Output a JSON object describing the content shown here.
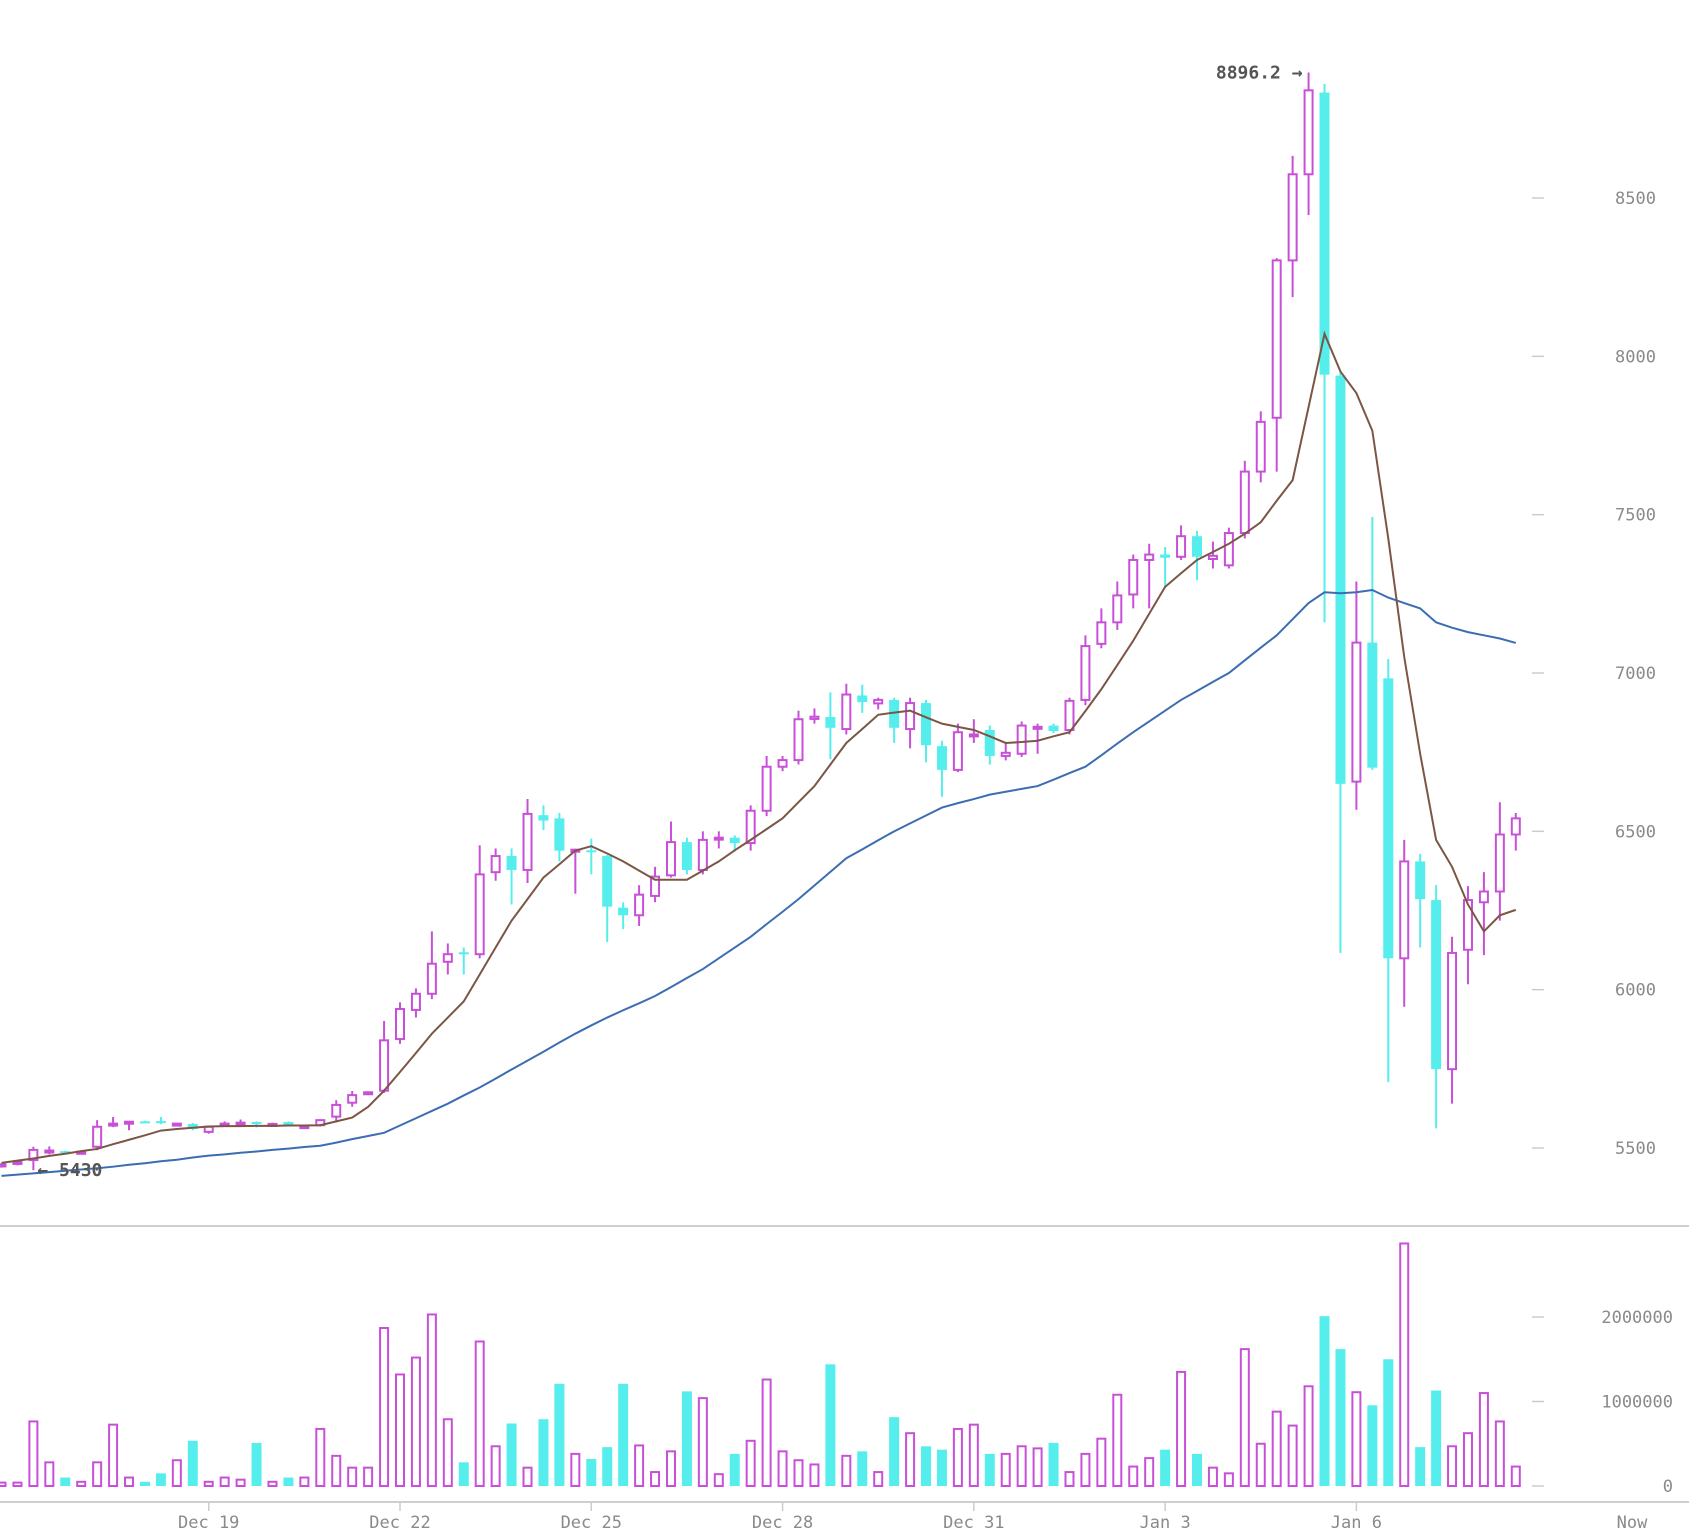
{
  "chart_data": {
    "type": "candlestick",
    "colors": {
      "up": "#c850d8",
      "down": "#55eeec",
      "ma_short": "#7b5644",
      "ma_long": "#3c6db3",
      "axis_text": "#8a8a8a",
      "divider": "#cfcfcf"
    },
    "grid": false,
    "price_axis": {
      "ylim": [
        5250,
        8980
      ],
      "ticks": [
        5500,
        6000,
        6500,
        7000,
        7500,
        8000,
        8500
      ],
      "tick_labels": [
        "5500",
        "6000",
        "6500",
        "7000",
        "7500",
        "8000",
        "8500"
      ]
    },
    "volume_axis": {
      "ylim": [
        0,
        2900000
      ],
      "ticks": [
        0,
        1000000,
        2000000
      ],
      "tick_labels": [
        "0",
        "1000000",
        "2000000"
      ]
    },
    "x_ticks": [
      "Dec 19",
      "Dec 22",
      "Dec 25",
      "Dec 28",
      "Dec 31",
      "Jan 3",
      "Jan 6"
    ],
    "x_now_label": "Now",
    "annotations": {
      "high_label": "8896.2 →",
      "low_label": "← 5430"
    },
    "x": [
      "Dec 15 18:00",
      "Dec 16 00:00",
      "Dec 16 06:00",
      "Dec 16 12:00",
      "Dec 16 18:00",
      "Dec 17 00:00",
      "Dec 17 06:00",
      "Dec 17 12:00",
      "Dec 17 18:00",
      "Dec 18 00:00",
      "Dec 18 06:00",
      "Dec 18 12:00",
      "Dec 18 18:00",
      "Dec 19 00:00",
      "Dec 19 06:00",
      "Dec 19 12:00",
      "Dec 19 18:00",
      "Dec 20 00:00",
      "Dec 20 06:00",
      "Dec 20 12:00",
      "Dec 20 18:00",
      "Dec 21 00:00",
      "Dec 21 06:00",
      "Dec 21 12:00",
      "Dec 21 18:00",
      "Dec 22 00:00",
      "Dec 22 06:00",
      "Dec 22 12:00",
      "Dec 22 18:00",
      "Dec 23 00:00",
      "Dec 23 06:00",
      "Dec 23 12:00",
      "Dec 23 18:00",
      "Dec 24 00:00",
      "Dec 24 06:00",
      "Dec 24 12:00",
      "Dec 24 18:00",
      "Dec 25 00:00",
      "Dec 25 06:00",
      "Dec 25 12:00",
      "Dec 25 18:00",
      "Dec 26 00:00",
      "Dec 26 06:00",
      "Dec 26 12:00",
      "Dec 26 18:00",
      "Dec 27 00:00",
      "Dec 27 06:00",
      "Dec 27 12:00",
      "Dec 27 18:00",
      "Dec 28 00:00",
      "Dec 28 06:00",
      "Dec 28 12:00",
      "Dec 28 18:00",
      "Dec 29 00:00",
      "Dec 29 06:00",
      "Dec 29 12:00",
      "Dec 29 18:00",
      "Dec 30 00:00",
      "Dec 30 06:00",
      "Dec 30 12:00",
      "Dec 30 18:00",
      "Dec 31 00:00",
      "Dec 31 06:00",
      "Dec 31 12:00",
      "Dec 31 18:00",
      "Jan 1 00:00",
      "Jan 1 06:00",
      "Jan 1 12:00",
      "Jan 1 18:00",
      "Jan 2 00:00",
      "Jan 2 06:00",
      "Jan 2 12:00",
      "Jan 2 18:00",
      "Jan 3 00:00",
      "Jan 3 06:00",
      "Jan 3 12:00",
      "Jan 3 18:00",
      "Jan 4 00:00",
      "Jan 4 06:00",
      "Jan 4 12:00",
      "Jan 4 18:00",
      "Jan 5 00:00",
      "Jan 5 06:00",
      "Jan 5 12:00",
      "Jan 5 18:00",
      "Jan 6 00:00",
      "Jan 6 06:00",
      "Jan 6 12:00",
      "Jan 6 18:00",
      "Jan 7 00:00",
      "Jan 7 06:00",
      "Jan 7 12:00",
      "Jan 7 18:00",
      "Jan 8 00:00",
      "Jan 8 06:00",
      "Jan 8 12:00"
    ],
    "ohlc": [
      [
        5445,
        5452,
        5438,
        5448
      ],
      [
        5452,
        5462,
        5445,
        5456
      ],
      [
        5462,
        5504,
        5430,
        5494
      ],
      [
        5487,
        5505,
        5480,
        5492
      ],
      [
        5490,
        5492,
        5485,
        5487
      ],
      [
        5486,
        5489,
        5484,
        5488
      ],
      [
        5504,
        5588,
        5493,
        5567
      ],
      [
        5572,
        5598,
        5566,
        5577
      ],
      [
        5580,
        5584,
        5556,
        5583
      ],
      [
        5584,
        5586,
        5580,
        5582
      ],
      [
        5585,
        5598,
        5575,
        5582
      ],
      [
        5574,
        5578,
        5570,
        5577
      ],
      [
        5576,
        5579,
        5556,
        5560
      ],
      [
        5551,
        5570,
        5545,
        5567
      ],
      [
        5574,
        5584,
        5568,
        5577
      ],
      [
        5576,
        5590,
        5570,
        5580
      ],
      [
        5582,
        5584,
        5565,
        5580
      ],
      [
        5574,
        5580,
        5570,
        5576
      ],
      [
        5582,
        5584,
        5568,
        5570
      ],
      [
        5566,
        5570,
        5562,
        5569
      ],
      [
        5572,
        5590,
        5568,
        5588
      ],
      [
        5599,
        5651,
        5581,
        5636
      ],
      [
        5643,
        5680,
        5630,
        5667
      ],
      [
        5673,
        5678,
        5670,
        5676
      ],
      [
        5681,
        5901,
        5674,
        5840
      ],
      [
        5844,
        5960,
        5829,
        5939
      ],
      [
        5936,
        6004,
        5912,
        5987
      ],
      [
        5987,
        6184,
        5970,
        6082
      ],
      [
        6088,
        6146,
        6048,
        6112
      ],
      [
        6118,
        6133,
        6048,
        6112
      ],
      [
        6112,
        6456,
        6099,
        6364
      ],
      [
        6371,
        6446,
        6344,
        6422
      ],
      [
        6422,
        6446,
        6269,
        6378
      ],
      [
        6378,
        6602,
        6337,
        6555
      ],
      [
        6551,
        6582,
        6504,
        6534
      ],
      [
        6541,
        6558,
        6405,
        6439
      ],
      [
        6439,
        6445,
        6303,
        6442
      ],
      [
        6440,
        6477,
        6364,
        6435
      ],
      [
        6422,
        6425,
        6150,
        6262
      ],
      [
        6259,
        6276,
        6191,
        6235
      ],
      [
        6235,
        6330,
        6201,
        6300
      ],
      [
        6296,
        6388,
        6276,
        6357
      ],
      [
        6361,
        6531,
        6354,
        6466
      ],
      [
        6466,
        6480,
        6364,
        6378
      ],
      [
        6378,
        6500,
        6364,
        6473
      ],
      [
        6474,
        6500,
        6446,
        6480
      ],
      [
        6480,
        6487,
        6436,
        6463
      ],
      [
        6463,
        6582,
        6439,
        6565
      ],
      [
        6565,
        6738,
        6548,
        6704
      ],
      [
        6704,
        6738,
        6690,
        6725
      ],
      [
        6725,
        6881,
        6711,
        6854
      ],
      [
        6855,
        6888,
        6840,
        6862
      ],
      [
        6861,
        6939,
        6728,
        6827
      ],
      [
        6823,
        6966,
        6806,
        6932
      ],
      [
        6929,
        6963,
        6874,
        6908
      ],
      [
        6904,
        6922,
        6885,
        6915
      ],
      [
        6915,
        6922,
        6779,
        6827
      ],
      [
        6823,
        6922,
        6762,
        6905
      ],
      [
        6905,
        6915,
        6718,
        6772
      ],
      [
        6769,
        6786,
        6609,
        6694
      ],
      [
        6694,
        6840,
        6687,
        6813
      ],
      [
        6800,
        6854,
        6779,
        6806
      ],
      [
        6820,
        6834,
        6711,
        6738
      ],
      [
        6738,
        6779,
        6724,
        6748
      ],
      [
        6745,
        6847,
        6735,
        6834
      ],
      [
        6824,
        6840,
        6745,
        6830
      ],
      [
        6834,
        6840,
        6810,
        6817
      ],
      [
        6820,
        6922,
        6806,
        6912
      ],
      [
        6915,
        7119,
        6898,
        7085
      ],
      [
        7092,
        7204,
        7078,
        7160
      ],
      [
        7160,
        7289,
        7136,
        7245
      ],
      [
        7248,
        7374,
        7204,
        7357
      ],
      [
        7357,
        7408,
        7204,
        7374
      ],
      [
        7374,
        7398,
        7272,
        7364
      ],
      [
        7367,
        7466,
        7357,
        7432
      ],
      [
        7432,
        7449,
        7293,
        7367
      ],
      [
        7360,
        7415,
        7330,
        7370
      ],
      [
        7340,
        7459,
        7330,
        7442
      ],
      [
        7442,
        7670,
        7425,
        7636
      ],
      [
        7636,
        7826,
        7602,
        7793
      ],
      [
        7806,
        8310,
        7636,
        8303
      ],
      [
        8303,
        8633,
        8187,
        8575
      ],
      [
        8575,
        8896.2,
        8446,
        8840
      ],
      [
        8833,
        8860,
        7160,
        7942
      ],
      [
        7939,
        7952,
        6116,
        6650
      ],
      [
        6657,
        7289,
        6568,
        7096
      ],
      [
        7096,
        7493,
        6694,
        6701
      ],
      [
        6983,
        7044,
        5708,
        6099
      ],
      [
        6099,
        6473,
        5946,
        6405
      ],
      [
        6405,
        6429,
        6133,
        6286
      ],
      [
        6283,
        6330,
        5562,
        5749
      ],
      [
        5749,
        6167,
        5640,
        6116
      ],
      [
        6126,
        6327,
        6017,
        6283
      ],
      [
        6276,
        6371,
        6109,
        6310
      ],
      [
        6310,
        6592,
        6218,
        6490
      ],
      [
        6490,
        6558,
        6439,
        6541
      ]
    ],
    "volume": [
      40000,
      40000,
      764000,
      280000,
      100000,
      50000,
      280000,
      726000,
      100000,
      50000,
      150000,
      305000,
      535000,
      50000,
      100000,
      75000,
      510000,
      50000,
      100000,
      100000,
      675000,
      357000,
      217000,
      217000,
      1870000,
      1320000,
      1520000,
      2030000,
      790000,
      280000,
      1710000,
      470000,
      740000,
      217000,
      790000,
      1210000,
      380000,
      320000,
      460000,
      1210000,
      480000,
      165000,
      410000,
      1120000,
      1040000,
      140000,
      380000,
      535000,
      1260000,
      410000,
      305000,
      255000,
      1440000,
      357000,
      410000,
      165000,
      815000,
      625000,
      470000,
      430000,
      675000,
      726000,
      380000,
      380000,
      470000,
      445000,
      510000,
      165000,
      380000,
      560000,
      1080000,
      230000,
      330000,
      430000,
      1350000,
      380000,
      217000,
      150000,
      1620000,
      500000,
      880000,
      715000,
      1180000,
      2010000,
      1620000,
      1110000,
      955000,
      1500000,
      2870000,
      460000,
      1130000,
      470000,
      625000,
      1100000,
      764000,
      230000
    ],
    "ma_short": [
      5453,
      5460,
      5467,
      5475,
      5482,
      5490,
      5497,
      5512,
      5526,
      5540,
      5555,
      5560,
      5564,
      5568,
      5569,
      5569,
      5570,
      5570,
      5571,
      5571,
      5572,
      5584,
      5596,
      5630,
      5681,
      5740,
      5800,
      5861,
      5912,
      5963,
      6048,
      6133,
      6218,
      6286,
      6354,
      6396,
      6439,
      6453,
      6430,
      6405,
      6376,
      6347,
      6347,
      6347,
      6376,
      6405,
      6440,
      6473,
      6507,
      6541,
      6592,
      6643,
      6711,
      6779,
      6823,
      6868,
      6875,
      6881,
      6860,
      6840,
      6830,
      6820,
      6800,
      6779,
      6782,
      6786,
      6800,
      6813,
      6880,
      6949,
      7025,
      7102,
      7187,
      7272,
      7315,
      7357,
      7382,
      7408,
      7440,
      7476,
      7544,
      7609,
      7840,
      8071,
      7952,
      7884,
      7765,
      7425,
      7051,
      6745,
      6473,
      6388,
      6269,
      6184,
      6235,
      6252
    ],
    "ma_long": [
      5412,
      5416,
      5420,
      5424,
      5428,
      5432,
      5436,
      5441,
      5447,
      5452,
      5458,
      5463,
      5470,
      5476,
      5480,
      5485,
      5489,
      5494,
      5498,
      5503,
      5507,
      5517,
      5528,
      5538,
      5548,
      5571,
      5594,
      5617,
      5640,
      5666,
      5691,
      5719,
      5748,
      5776,
      5804,
      5833,
      5861,
      5887,
      5912,
      5935,
      5957,
      5980,
      6008,
      6037,
      6065,
      6099,
      6133,
      6167,
      6207,
      6246,
      6286,
      6329,
      6372,
      6415,
      6443,
      6472,
      6500,
      6525,
      6550,
      6575,
      6589,
      6602,
      6616,
      6625,
      6634,
      6643,
      6663,
      6684,
      6704,
      6740,
      6777,
      6813,
      6847,
      6881,
      6915,
      6943,
      6972,
      7000,
      7040,
      7080,
      7119,
      7170,
      7221,
      7255,
      7252,
      7255,
      7262,
      7238,
      7221,
      7204,
      7160,
      7143,
      7129,
      7119,
      7109,
      7095
    ]
  }
}
